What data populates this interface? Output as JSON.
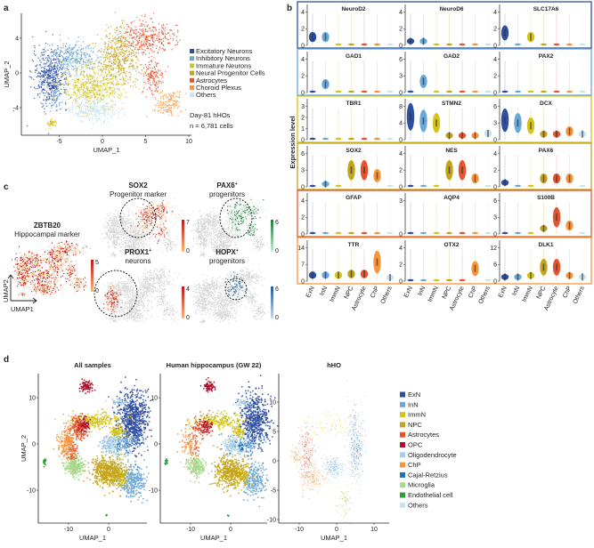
{
  "cell_colors": {
    "ExN": "#2e4ea1",
    "InN": "#6aa8d8",
    "ImmN": "#d4c419",
    "NPC": "#c4a418",
    "Astrocyte": "#e8532f",
    "ChP": "#f7953b",
    "Others": "#c5e3f0",
    "OPC": "#b0102a",
    "Oligodendrocyte": "#a9cde6",
    "Cajal-Retzius": "#1f6fb5",
    "Microglia": "#a6d98a",
    "Endothelial cell": "#2e9b36"
  },
  "chart_data": [
    {
      "panel": "a",
      "type": "scatter",
      "xlabel": "UMAP_1",
      "ylabel": "UMAP_2",
      "xticks": [
        -5,
        0,
        5,
        10
      ],
      "yticks": [
        4,
        0,
        -4
      ],
      "xlim": [
        -9,
        10
      ],
      "ylim": [
        -6,
        6.5
      ],
      "legend": [
        {
          "label": "Excitatory Neurons",
          "key": "ExN"
        },
        {
          "label": "Inhibitory Neurons",
          "key": "InN"
        },
        {
          "label": "Immature Neurons",
          "key": "ImmN"
        },
        {
          "label": "Neural Progenitor Cells",
          "key": "NPC"
        },
        {
          "label": "Astrocytes",
          "key": "Astrocyte"
        },
        {
          "label": "Choroid Plexus",
          "key": "ChP"
        },
        {
          "label": "Others",
          "key": "Others"
        }
      ],
      "annotation": [
        "Day-81 hHOs",
        "n = 6,781 cells"
      ],
      "clusters": [
        {
          "key": "ExN",
          "c": [
            -6,
            -0.5
          ],
          "s": [
            1,
            1.6
          ],
          "n": 500
        },
        {
          "key": "InN",
          "c": [
            -3.5,
            1.8
          ],
          "s": [
            1.5,
            0.9
          ],
          "n": 350
        },
        {
          "key": "InN",
          "c": [
            -5.5,
            -3
          ],
          "s": [
            0.4,
            0.6
          ],
          "n": 60
        },
        {
          "key": "ImmN",
          "c": [
            -1,
            -1.5
          ],
          "s": [
            1.8,
            1.2
          ],
          "n": 550
        },
        {
          "key": "ImmN",
          "c": [
            -5.8,
            -5.8
          ],
          "s": [
            0.3,
            0.2
          ],
          "n": 40
        },
        {
          "key": "NPC",
          "c": [
            2,
            2
          ],
          "s": [
            1.1,
            1.5
          ],
          "n": 450
        },
        {
          "key": "Astrocyte",
          "c": [
            5,
            4
          ],
          "s": [
            1.6,
            1
          ],
          "n": 350
        },
        {
          "key": "Astrocyte",
          "c": [
            5.8,
            -0.5
          ],
          "s": [
            0.6,
            1
          ],
          "n": 150
        },
        {
          "key": "ChP",
          "c": [
            7.5,
            -3.5
          ],
          "s": [
            0.8,
            0.8
          ],
          "n": 150
        },
        {
          "key": "Others",
          "c": [
            -1,
            -4.3
          ],
          "s": [
            1.5,
            0.7
          ],
          "n": 350
        }
      ]
    },
    {
      "panel": "b",
      "type": "violin",
      "ylabel": "Expression level",
      "categories": [
        "ExN",
        "InN",
        "ImmN",
        "NPC",
        "Astrocyte",
        "ChP",
        "Others"
      ],
      "rows": [
        {
          "box_key": "ExN",
          "genes": [
            {
              "name": "NeuroD2",
              "yticks": [
                0,
                2,
                4
              ],
              "values": [
                1,
                1,
                0,
                0,
                0,
                0,
                0
              ]
            },
            {
              "name": "NeuroD6",
              "yticks": [
                0,
                2,
                4
              ],
              "values": [
                0.5,
                0.5,
                0,
                0,
                0,
                0,
                0
              ]
            },
            {
              "name": "SLC17A6",
              "yticks": [
                0,
                2,
                4
              ],
              "values": [
                1.5,
                0,
                1,
                0,
                0,
                0,
                0
              ]
            }
          ]
        },
        {
          "box_key": "InN",
          "genes": [
            {
              "name": "GAD1",
              "yticks": [
                0,
                2,
                4
              ],
              "values": [
                0,
                1,
                0,
                0,
                0,
                0,
                0
              ]
            },
            {
              "name": "GAD2",
              "yticks": [
                0,
                3,
                6
              ],
              "values": [
                0,
                2,
                0,
                0,
                0,
                0,
                0
              ]
            },
            {
              "name": "PAX2",
              "yticks": [
                0,
                2,
                4
              ],
              "values": [
                0,
                0,
                0,
                0,
                0,
                0,
                0
              ]
            }
          ]
        },
        {
          "box_key": "ImmN",
          "genes": [
            {
              "name": "TBR1",
              "yticks": [
                0,
                1,
                2,
                3
              ],
              "values": [
                0,
                0,
                0,
                0,
                0,
                0,
                0
              ]
            },
            {
              "name": "STMN2",
              "yticks": [
                0,
                4,
                8
              ],
              "values": [
                5.5,
                4.5,
                4,
                1,
                1,
                1,
                1.5
              ]
            },
            {
              "name": "DCX",
              "yticks": [
                0,
                3,
                6
              ],
              "values": [
                3.5,
                3,
                2.5,
                1,
                1,
                1.5,
                1
              ]
            }
          ]
        },
        {
          "box_key": "NPC",
          "genes": [
            {
              "name": "SOX2",
              "yticks": [
                0,
                3,
                6
              ],
              "values": [
                0,
                0.5,
                0,
                3,
                3,
                2,
                0
              ]
            },
            {
              "name": "NES",
              "yticks": [
                0,
                2,
                4
              ],
              "values": [
                0,
                0,
                0,
                2,
                2,
                1,
                0
              ]
            },
            {
              "name": "PAX6",
              "yticks": [
                0,
                2,
                4
              ],
              "values": [
                0.5,
                0,
                0,
                1,
                1,
                1,
                0
              ]
            }
          ]
        },
        {
          "box_key": "Astrocyte",
          "genes": [
            {
              "name": "GFAP",
              "yticks": [
                0,
                2,
                4
              ],
              "values": [
                0,
                0,
                0,
                0,
                0,
                0,
                0
              ]
            },
            {
              "name": "AQP4",
              "yticks": [
                0,
                3
              ],
              "values": [
                0,
                0,
                0,
                0,
                0,
                0,
                0
              ]
            },
            {
              "name": "S100B",
              "yticks": [
                0,
                3,
                6
              ],
              "values": [
                0,
                0,
                0,
                1,
                3,
                1.5,
                0
              ]
            }
          ]
        },
        {
          "box_key": "ChP",
          "genes": [
            {
              "name": "TTR",
              "yticks": [
                0,
                7,
                14
              ],
              "values": [
                2.5,
                2.5,
                2.5,
                3,
                3,
                8,
                1.5
              ]
            },
            {
              "name": "OTX2",
              "yticks": [
                0,
                2,
                4
              ],
              "values": [
                0,
                0,
                0,
                0,
                0,
                1.5,
                0
              ]
            },
            {
              "name": "DLK1",
              "yticks": [
                0,
                6,
                12
              ],
              "values": [
                1.5,
                1.5,
                2,
                5,
                5,
                2,
                1.5
              ]
            }
          ]
        }
      ]
    },
    {
      "panel": "c",
      "type": "scatter",
      "axis_labels": [
        "UMAP1",
        "UMAP2"
      ],
      "plots": [
        {
          "gene": "ZBTB20",
          "subtitle": "Hippocampal marker",
          "max": 5,
          "min": 0,
          "color": "#c0161b",
          "low": "#fbb879",
          "hi": "all"
        },
        {
          "gene": "SOX2",
          "subtitle": "Progenitor marker",
          "max": 7,
          "min": 0,
          "color": "#c0161b",
          "low": "#fbb879",
          "hi": "prog"
        },
        {
          "gene": "PAX6",
          "sup": "+",
          "subtitle": "progenitors",
          "max": 6,
          "min": 0,
          "color": "#1e7b3a",
          "low": "#c7ebd9",
          "hi": "prog2"
        },
        {
          "gene": "PROX1",
          "sup": "+",
          "subtitle": "neurons",
          "max": 4,
          "min": 0,
          "color": "#c0161b",
          "low": "#fbb879",
          "hi": "neur"
        },
        {
          "gene": "HOPX",
          "sup": "+",
          "subtitle": "progenitors",
          "max": 6,
          "min": 0,
          "color": "#1d5a96",
          "low": "#cdd9ea",
          "hi": "hopx"
        }
      ]
    },
    {
      "panel": "d",
      "type": "scatter",
      "xlabel": "UMAP_1",
      "ylabel": "UMAP_2",
      "plots": [
        {
          "title": "All samples",
          "xticks": [
            -10,
            0
          ],
          "yticks": [
            10,
            0,
            -10
          ]
        },
        {
          "title": "Human hippocampus (GW 22)",
          "xticks": [
            -10,
            0
          ],
          "yticks": [
            10,
            0,
            -10
          ]
        },
        {
          "title": "hHO",
          "xticks": [
            -10,
            0,
            10
          ],
          "yticks": [
            10,
            5,
            0,
            -5,
            -10
          ]
        }
      ],
      "legend": [
        {
          "label": "ExN",
          "key": "ExN"
        },
        {
          "label": "InN",
          "key": "InN"
        },
        {
          "label": "ImmN",
          "key": "ImmN"
        },
        {
          "label": "NPC",
          "key": "NPC"
        },
        {
          "label": "Astrocytes",
          "key": "Astrocyte"
        },
        {
          "label": "OPC",
          "key": "OPC"
        },
        {
          "label": "Oligodendrocyte",
          "key": "Oligodendrocyte"
        },
        {
          "label": "ChP",
          "key": "ChP"
        },
        {
          "label": "Cajal-Retzius",
          "key": "Cajal-Retzius"
        },
        {
          "label": "Microglia",
          "key": "Microglia"
        },
        {
          "label": "Endothelial cell",
          "key": "Endothelial cell"
        },
        {
          "label": "Others",
          "key": "Others"
        }
      ],
      "clusters": [
        {
          "key": "ExN",
          "c": [
            6,
            5
          ],
          "s": [
            1.8,
            3
          ],
          "n": 700
        },
        {
          "key": "InN",
          "c": [
            6,
            -8
          ],
          "s": [
            1.5,
            1.8
          ],
          "n": 300
        },
        {
          "key": "InN",
          "c": [
            3,
            0
          ],
          "s": [
            2.5,
            1.2
          ],
          "n": 180
        },
        {
          "key": "ImmN",
          "c": [
            -3,
            5
          ],
          "s": [
            3,
            0.8
          ],
          "n": 250
        },
        {
          "key": "ImmN",
          "c": [
            2,
            2.5
          ],
          "s": [
            0.8,
            0.6
          ],
          "n": 80
        },
        {
          "key": "ImmN",
          "c": [
            3,
            -7
          ],
          "s": [
            0.8,
            1.2
          ],
          "n": 100
        },
        {
          "key": "NPC",
          "c": [
            0,
            -6
          ],
          "s": [
            2,
            1.6
          ],
          "n": 600
        },
        {
          "key": "Astrocyte",
          "c": [
            -7.5,
            3.5
          ],
          "s": [
            1.2,
            1.2
          ],
          "n": 200
        },
        {
          "key": "Astrocyte",
          "c": [
            -9,
            -2
          ],
          "s": [
            0.6,
            1.8
          ],
          "n": 100
        },
        {
          "key": "OPC",
          "c": [
            -5.5,
            12.5
          ],
          "s": [
            0.8,
            0.6
          ],
          "n": 90
        },
        {
          "key": "OPC",
          "c": [
            -6,
            4
          ],
          "s": [
            0.8,
            0.8
          ],
          "n": 70
        },
        {
          "key": "Oligodendrocyte",
          "c": [
            0,
            0
          ],
          "s": [
            0.9,
            0.9
          ],
          "n": 80
        },
        {
          "key": "Oligodendrocyte",
          "c": [
            3,
            9
          ],
          "s": [
            1,
            0.4
          ],
          "n": 40
        },
        {
          "key": "ChP",
          "c": [
            -10.5,
            0
          ],
          "s": [
            1,
            1.6
          ],
          "n": 200
        },
        {
          "key": "Cajal-Retzius",
          "c": [
            2.5,
            -0.5
          ],
          "s": [
            0.3,
            0.4
          ],
          "n": 40
        },
        {
          "key": "Microglia",
          "c": [
            -8.5,
            -5
          ],
          "s": [
            1.2,
            1
          ],
          "n": 250
        },
        {
          "key": "Endothelial cell",
          "c": [
            -16,
            -4
          ],
          "s": [
            0.2,
            0.4
          ],
          "n": 25
        },
        {
          "key": "Endothelial cell",
          "c": [
            -0.5,
            -15.5
          ],
          "s": [
            0.1,
            0.1
          ],
          "n": 5
        },
        {
          "key": "Others",
          "c": [
            1.5,
            -1
          ],
          "s": [
            1,
            1.5
          ],
          "n": 80
        }
      ],
      "hho_clusters": [
        {
          "key": "InN",
          "c": [
            5,
            3
          ],
          "s": [
            1.2,
            3
          ],
          "n": 250
        },
        {
          "key": "InN",
          "c": [
            -1,
            -1
          ],
          "s": [
            1.3,
            0.8
          ],
          "n": 150
        },
        {
          "key": "ImmN",
          "c": [
            -2,
            6
          ],
          "s": [
            3,
            1
          ],
          "n": 100
        },
        {
          "key": "Astrocyte",
          "c": [
            -8,
            1
          ],
          "s": [
            1,
            2.5
          ],
          "n": 250
        },
        {
          "key": "ChP",
          "c": [
            -6,
            -3
          ],
          "s": [
            1.5,
            1
          ],
          "n": 150
        },
        {
          "key": "ChP",
          "c": [
            -11,
            1
          ],
          "s": [
            0.8,
            0.8
          ],
          "n": 60
        },
        {
          "key": "ExN",
          "c": [
            5.5,
            2
          ],
          "s": [
            1,
            2.5
          ],
          "n": 80
        },
        {
          "key": "Others",
          "c": [
            0,
            -1.5
          ],
          "s": [
            1.2,
            1
          ],
          "n": 120
        },
        {
          "key": "NPC",
          "c": [
            2,
            -7
          ],
          "s": [
            1,
            1.5
          ],
          "n": 60
        }
      ]
    }
  ],
  "panels": {
    "a": "a",
    "b": "b",
    "c": "c",
    "d": "d"
  }
}
